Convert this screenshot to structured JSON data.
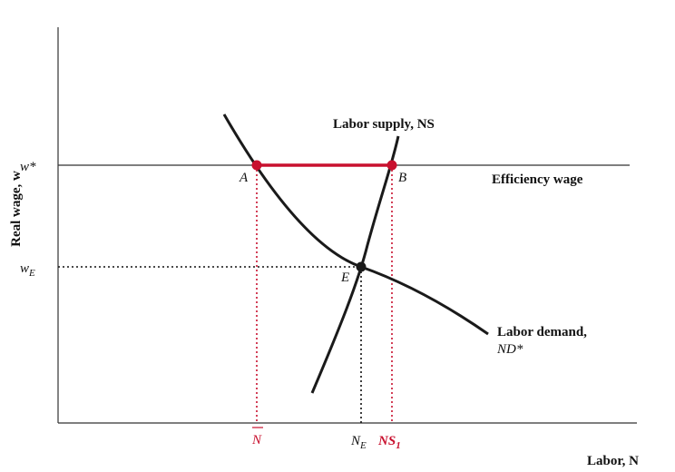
{
  "axes": {
    "ylabel": "Real wage, w",
    "xlabel": "Labor, N"
  },
  "y_ticks": {
    "w_star": "w*",
    "w_E": "w",
    "w_E_sub": "E"
  },
  "x_ticks": {
    "n_bar": "N",
    "n_E": "N",
    "n_E_sub": "E",
    "ns1": "NS",
    "ns1_sub": "1"
  },
  "curves": {
    "supply_label": "Labor supply, NS",
    "demand_label_line1": "Labor demand,",
    "demand_label_line2": "ND*",
    "efficiency_wage_label": "Efficiency wage"
  },
  "points": {
    "A": "A",
    "B": "B",
    "E": "E"
  },
  "colors": {
    "accent": "#c8102e",
    "curve": "#1a1a1a",
    "axis": "#333333"
  }
}
